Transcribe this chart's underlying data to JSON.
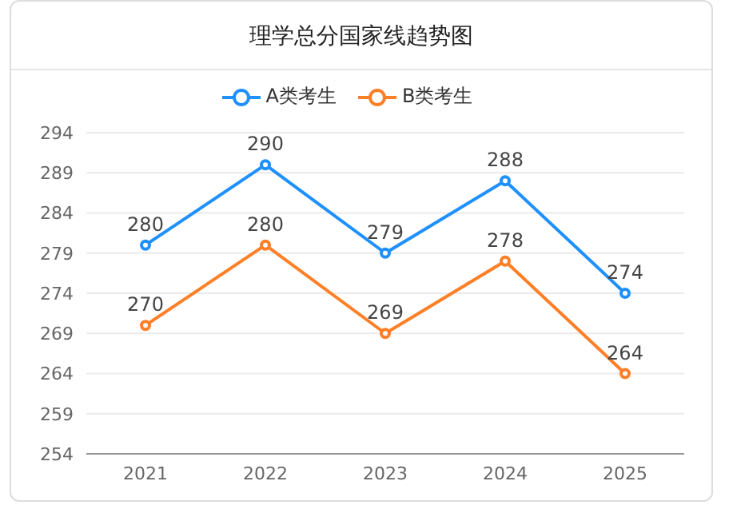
{
  "chart_data": {
    "type": "line",
    "title": "理学总分国家线趋势图",
    "categories": [
      "2021",
      "2022",
      "2023",
      "2024",
      "2025"
    ],
    "series": [
      {
        "name": "A类考生",
        "color": "#1e90ff",
        "values": [
          280,
          290,
          279,
          288,
          274
        ]
      },
      {
        "name": "B类考生",
        "color": "#ff7f27",
        "values": [
          270,
          280,
          269,
          278,
          264
        ]
      }
    ],
    "ylim": [
      254,
      294
    ],
    "yticks": [
      254,
      259,
      264,
      269,
      274,
      279,
      284,
      289,
      294
    ],
    "grid": "y",
    "legend": "top",
    "marker": "circle",
    "data_labels": true
  }
}
